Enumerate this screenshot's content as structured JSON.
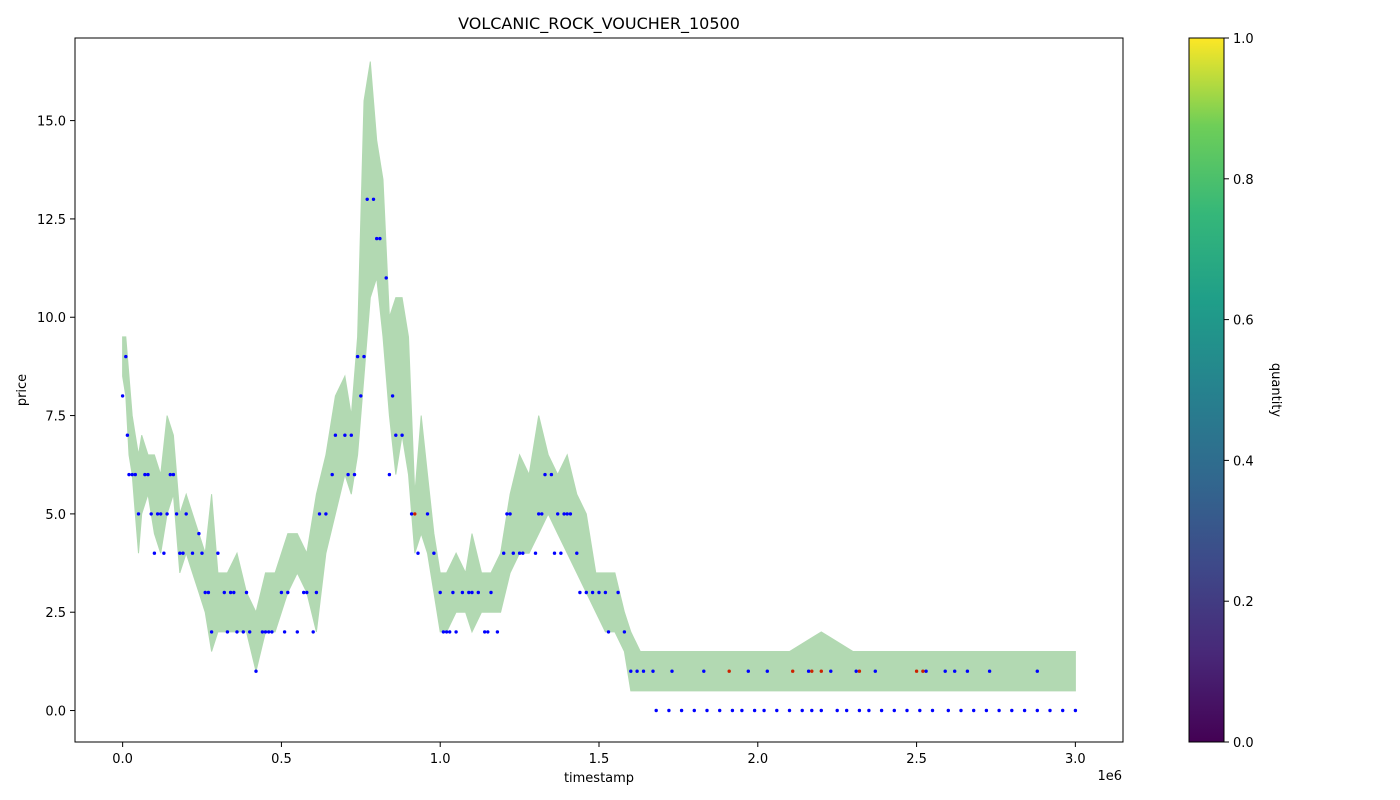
{
  "chart_data": {
    "type": "line",
    "title": "VOLCANIC_ROCK_VOUCHER_10500",
    "xlabel": "timestamp",
    "ylabel": "price",
    "x_offset_label": "1e6",
    "x_ticks": [
      "0.0",
      "0.5",
      "1.0",
      "1.5",
      "2.0",
      "2.5",
      "3.0"
    ],
    "y_ticks": [
      "0.0",
      "2.5",
      "5.0",
      "7.5",
      "10.0",
      "12.5",
      "15.0"
    ],
    "xlim": [
      -0.15,
      3.15
    ],
    "ylim": [
      -0.8,
      17.1
    ],
    "grid": false,
    "colorbar": {
      "label": "quantity",
      "ticks": [
        "0.0",
        "0.2",
        "0.4",
        "0.6",
        "0.8",
        "1.0"
      ],
      "colormap": "viridis"
    },
    "series": [
      {
        "kind": "band",
        "color": "#b2d9b2",
        "x": [
          0.0,
          0.01,
          0.02,
          0.03,
          0.04,
          0.05,
          0.06,
          0.08,
          0.1,
          0.12,
          0.14,
          0.16,
          0.18,
          0.2,
          0.22,
          0.24,
          0.26,
          0.28,
          0.3,
          0.33,
          0.36,
          0.39,
          0.42,
          0.45,
          0.48,
          0.52,
          0.55,
          0.58,
          0.61,
          0.64,
          0.67,
          0.7,
          0.72,
          0.74,
          0.76,
          0.78,
          0.8,
          0.82,
          0.84,
          0.86,
          0.88,
          0.9,
          0.92,
          0.94,
          0.96,
          0.98,
          1.0,
          1.02,
          1.05,
          1.08,
          1.1,
          1.13,
          1.16,
          1.19,
          1.22,
          1.25,
          1.28,
          1.31,
          1.34,
          1.37,
          1.4,
          1.43,
          1.46,
          1.49,
          1.52,
          1.55,
          1.58,
          1.6,
          1.63,
          1.66,
          1.7,
          1.8,
          1.9,
          2.0,
          2.1,
          2.2,
          2.3,
          2.4,
          2.5,
          2.6,
          2.7,
          2.8,
          2.9,
          3.0
        ],
        "low": [
          8.5,
          8.0,
          6.5,
          6.0,
          5.0,
          4.0,
          5.0,
          5.5,
          4.5,
          4.0,
          5.0,
          5.5,
          3.5,
          4.0,
          3.5,
          3.0,
          2.5,
          1.5,
          2.0,
          2.0,
          2.0,
          2.0,
          1.0,
          2.0,
          2.0,
          3.0,
          3.5,
          3.0,
          2.0,
          4.0,
          5.0,
          6.0,
          5.5,
          6.5,
          8.5,
          10.5,
          11.0,
          9.5,
          7.5,
          6.0,
          7.0,
          6.0,
          4.0,
          4.5,
          4.0,
          3.0,
          2.0,
          2.0,
          2.5,
          2.5,
          2.0,
          2.5,
          2.5,
          2.5,
          3.5,
          4.0,
          4.0,
          4.5,
          5.0,
          4.5,
          4.0,
          3.5,
          3.0,
          2.5,
          2.0,
          2.0,
          1.5,
          0.5,
          0.5,
          0.5,
          0.5,
          0.5,
          0.5,
          0.5,
          0.5,
          0.5,
          0.5,
          0.5,
          0.5,
          0.5,
          0.5,
          0.5,
          0.5,
          0.5
        ],
        "high": [
          9.5,
          9.5,
          8.5,
          7.5,
          7.0,
          6.5,
          7.0,
          6.5,
          6.5,
          6.0,
          7.5,
          7.0,
          5.0,
          5.5,
          5.0,
          4.5,
          4.0,
          5.5,
          3.5,
          3.5,
          4.0,
          3.0,
          2.5,
          3.5,
          3.5,
          4.5,
          4.5,
          4.0,
          5.5,
          6.5,
          8.0,
          8.5,
          7.5,
          9.5,
          15.5,
          16.5,
          14.5,
          13.5,
          10.0,
          10.5,
          10.5,
          9.5,
          5.5,
          7.5,
          6.0,
          4.5,
          3.5,
          3.5,
          4.0,
          3.5,
          4.5,
          3.5,
          3.5,
          4.0,
          5.5,
          6.5,
          6.0,
          7.5,
          6.5,
          6.0,
          6.5,
          5.5,
          5.0,
          3.5,
          3.5,
          3.5,
          2.5,
          2.0,
          1.5,
          1.5,
          1.5,
          1.5,
          1.5,
          1.5,
          1.5,
          2.0,
          1.5,
          1.5,
          1.5,
          1.5,
          1.5,
          1.5,
          1.5,
          1.5
        ]
      },
      {
        "kind": "scatter",
        "name": "blue points",
        "color": "#0000ff",
        "points": [
          [
            0.0,
            8.0
          ],
          [
            0.01,
            9.0
          ],
          [
            0.015,
            7.0
          ],
          [
            0.02,
            6.0
          ],
          [
            0.03,
            6.0
          ],
          [
            0.04,
            6.0
          ],
          [
            0.05,
            5.0
          ],
          [
            0.07,
            6.0
          ],
          [
            0.08,
            6.0
          ],
          [
            0.09,
            5.0
          ],
          [
            0.1,
            4.0
          ],
          [
            0.11,
            5.0
          ],
          [
            0.12,
            5.0
          ],
          [
            0.13,
            4.0
          ],
          [
            0.14,
            5.0
          ],
          [
            0.15,
            6.0
          ],
          [
            0.16,
            6.0
          ],
          [
            0.17,
            5.0
          ],
          [
            0.18,
            4.0
          ],
          [
            0.19,
            4.0
          ],
          [
            0.2,
            5.0
          ],
          [
            0.22,
            4.0
          ],
          [
            0.24,
            4.5
          ],
          [
            0.25,
            4.0
          ],
          [
            0.26,
            3.0
          ],
          [
            0.27,
            3.0
          ],
          [
            0.28,
            2.0
          ],
          [
            0.3,
            4.0
          ],
          [
            0.32,
            3.0
          ],
          [
            0.33,
            2.0
          ],
          [
            0.34,
            3.0
          ],
          [
            0.35,
            3.0
          ],
          [
            0.36,
            2.0
          ],
          [
            0.38,
            2.0
          ],
          [
            0.39,
            3.0
          ],
          [
            0.4,
            2.0
          ],
          [
            0.42,
            1.0
          ],
          [
            0.44,
            2.0
          ],
          [
            0.45,
            2.0
          ],
          [
            0.46,
            2.0
          ],
          [
            0.47,
            2.0
          ],
          [
            0.5,
            3.0
          ],
          [
            0.51,
            2.0
          ],
          [
            0.52,
            3.0
          ],
          [
            0.55,
            2.0
          ],
          [
            0.57,
            3.0
          ],
          [
            0.58,
            3.0
          ],
          [
            0.6,
            2.0
          ],
          [
            0.61,
            3.0
          ],
          [
            0.62,
            5.0
          ],
          [
            0.64,
            5.0
          ],
          [
            0.66,
            6.0
          ],
          [
            0.67,
            7.0
          ],
          [
            0.7,
            7.0
          ],
          [
            0.71,
            6.0
          ],
          [
            0.72,
            7.0
          ],
          [
            0.73,
            6.0
          ],
          [
            0.74,
            9.0
          ],
          [
            0.75,
            8.0
          ],
          [
            0.76,
            9.0
          ],
          [
            0.77,
            13.0
          ],
          [
            0.79,
            13.0
          ],
          [
            0.8,
            12.0
          ],
          [
            0.81,
            12.0
          ],
          [
            0.83,
            11.0
          ],
          [
            0.84,
            6.0
          ],
          [
            0.85,
            8.0
          ],
          [
            0.86,
            7.0
          ],
          [
            0.88,
            7.0
          ],
          [
            0.91,
            5.0
          ],
          [
            0.93,
            4.0
          ],
          [
            0.96,
            5.0
          ],
          [
            0.98,
            4.0
          ],
          [
            1.0,
            3.0
          ],
          [
            1.01,
            2.0
          ],
          [
            1.02,
            2.0
          ],
          [
            1.03,
            2.0
          ],
          [
            1.04,
            3.0
          ],
          [
            1.05,
            2.0
          ],
          [
            1.07,
            3.0
          ],
          [
            1.09,
            3.0
          ],
          [
            1.1,
            3.0
          ],
          [
            1.12,
            3.0
          ],
          [
            1.14,
            2.0
          ],
          [
            1.15,
            2.0
          ],
          [
            1.16,
            3.0
          ],
          [
            1.18,
            2.0
          ],
          [
            1.2,
            4.0
          ],
          [
            1.21,
            5.0
          ],
          [
            1.22,
            5.0
          ],
          [
            1.23,
            4.0
          ],
          [
            1.25,
            4.0
          ],
          [
            1.26,
            4.0
          ],
          [
            1.3,
            4.0
          ],
          [
            1.31,
            5.0
          ],
          [
            1.32,
            5.0
          ],
          [
            1.33,
            6.0
          ],
          [
            1.35,
            6.0
          ],
          [
            1.36,
            4.0
          ],
          [
            1.37,
            5.0
          ],
          [
            1.38,
            4.0
          ],
          [
            1.39,
            5.0
          ],
          [
            1.4,
            5.0
          ],
          [
            1.41,
            5.0
          ],
          [
            1.43,
            4.0
          ],
          [
            1.44,
            3.0
          ],
          [
            1.46,
            3.0
          ],
          [
            1.48,
            3.0
          ],
          [
            1.5,
            3.0
          ],
          [
            1.52,
            3.0
          ],
          [
            1.53,
            2.0
          ],
          [
            1.56,
            3.0
          ],
          [
            1.58,
            2.0
          ],
          [
            1.6,
            1.0
          ],
          [
            1.62,
            1.0
          ],
          [
            1.64,
            1.0
          ],
          [
            1.67,
            1.0
          ],
          [
            1.73,
            1.0
          ],
          [
            1.83,
            1.0
          ],
          [
            1.97,
            1.0
          ],
          [
            2.03,
            1.0
          ],
          [
            2.16,
            1.0
          ],
          [
            2.23,
            1.0
          ],
          [
            2.31,
            1.0
          ],
          [
            2.37,
            1.0
          ],
          [
            2.53,
            1.0
          ],
          [
            2.59,
            1.0
          ],
          [
            2.62,
            1.0
          ],
          [
            2.66,
            1.0
          ],
          [
            2.73,
            1.0
          ],
          [
            2.88,
            1.0
          ],
          [
            1.68,
            0.0
          ],
          [
            1.72,
            0.0
          ],
          [
            1.76,
            0.0
          ],
          [
            1.8,
            0.0
          ],
          [
            1.84,
            0.0
          ],
          [
            1.88,
            0.0
          ],
          [
            1.92,
            0.0
          ],
          [
            1.95,
            0.0
          ],
          [
            1.99,
            0.0
          ],
          [
            2.02,
            0.0
          ],
          [
            2.06,
            0.0
          ],
          [
            2.1,
            0.0
          ],
          [
            2.14,
            0.0
          ],
          [
            2.17,
            0.0
          ],
          [
            2.2,
            0.0
          ],
          [
            2.25,
            0.0
          ],
          [
            2.28,
            0.0
          ],
          [
            2.32,
            0.0
          ],
          [
            2.35,
            0.0
          ],
          [
            2.39,
            0.0
          ],
          [
            2.43,
            0.0
          ],
          [
            2.47,
            0.0
          ],
          [
            2.51,
            0.0
          ],
          [
            2.55,
            0.0
          ],
          [
            2.6,
            0.0
          ],
          [
            2.64,
            0.0
          ],
          [
            2.68,
            0.0
          ],
          [
            2.72,
            0.0
          ],
          [
            2.76,
            0.0
          ],
          [
            2.8,
            0.0
          ],
          [
            2.84,
            0.0
          ],
          [
            2.88,
            0.0
          ],
          [
            2.92,
            0.0
          ],
          [
            2.96,
            0.0
          ],
          [
            3.0,
            0.0
          ]
        ]
      },
      {
        "kind": "scatter",
        "name": "red points",
        "color": "#cc2200",
        "points": [
          [
            0.92,
            5.0
          ],
          [
            1.91,
            1.0
          ],
          [
            2.11,
            1.0
          ],
          [
            2.17,
            1.0
          ],
          [
            2.2,
            1.0
          ],
          [
            2.32,
            1.0
          ],
          [
            2.5,
            1.0
          ],
          [
            2.52,
            1.0
          ]
        ]
      }
    ]
  }
}
